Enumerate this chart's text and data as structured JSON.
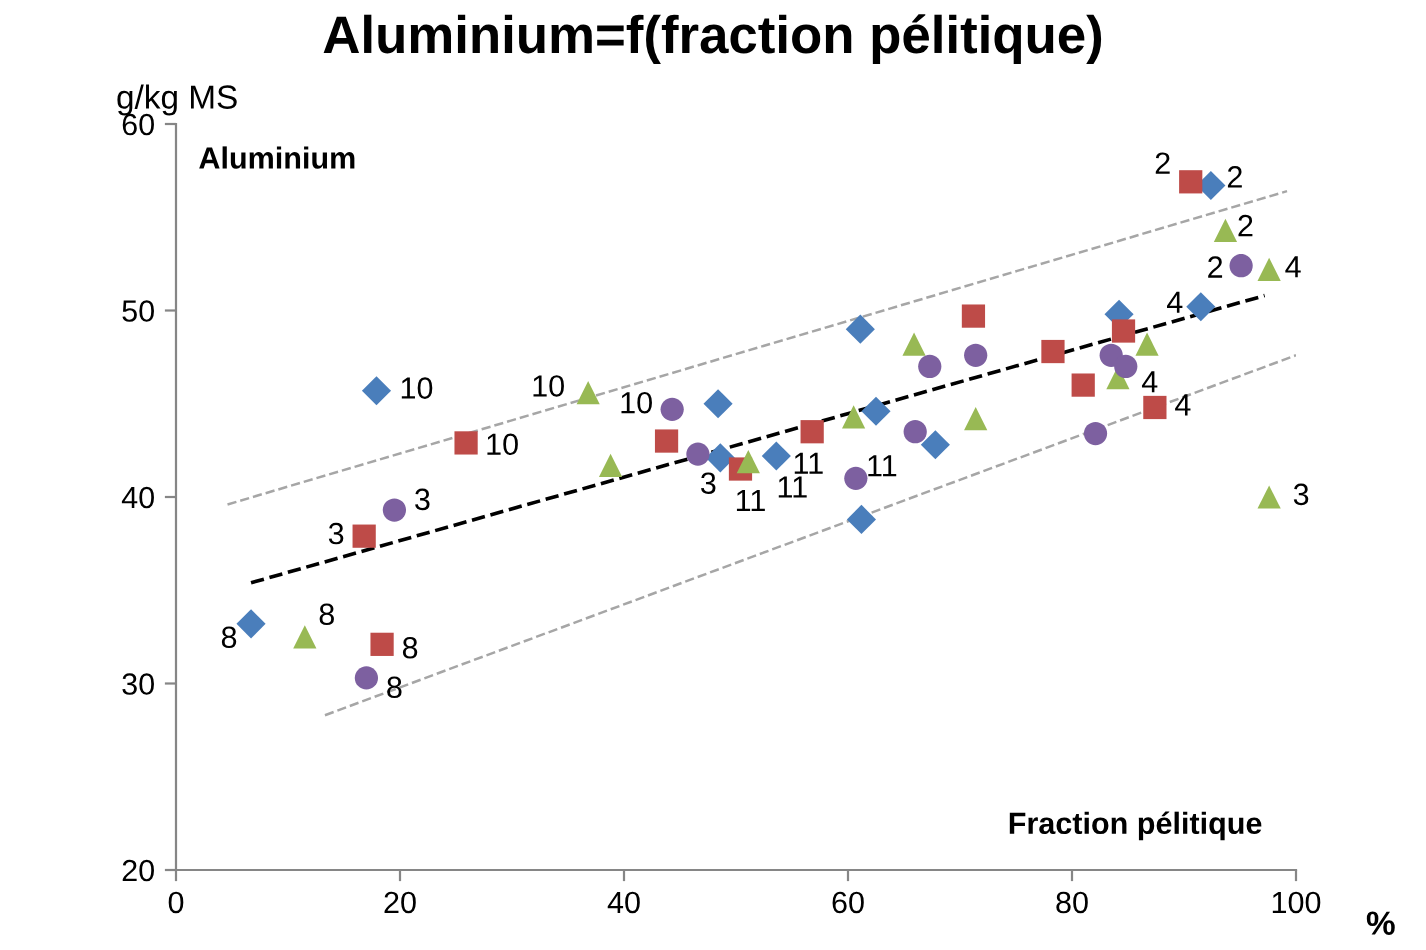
{
  "chart_data": {
    "type": "scatter",
    "title": "Aluminium=f(fraction pélitique)",
    "xlabel": "%",
    "ylabel": "g/kg MS",
    "xlim": [
      0,
      100
    ],
    "xticks": [
      0,
      20,
      40,
      60,
      80,
      100
    ],
    "ylim": [
      20,
      60
    ],
    "yticks": [
      20,
      30,
      40,
      50,
      60
    ],
    "grid": false,
    "legend": false,
    "series": [
      {
        "color": "#4a7ebb",
        "marker": "diamond",
        "x": [
          6.7,
          17.9,
          48.4,
          48.6,
          53.6,
          61.1,
          62.5,
          61.2,
          67.8,
          84.2,
          91.5,
          92.4
        ],
        "values": [
          33.2,
          45.7,
          45.0,
          42.1,
          42.2,
          49.0,
          44.6,
          38.8,
          42.8,
          49.8,
          50.2,
          56.7
        ]
      },
      {
        "color": "#be4b48",
        "marker": "square",
        "x": [
          16.8,
          18.4,
          25.9,
          43.8,
          50.4,
          56.8,
          71.2,
          78.3,
          81.0,
          84.6,
          87.4,
          90.6
        ],
        "values": [
          37.9,
          32.1,
          42.9,
          43.0,
          41.5,
          43.5,
          49.7,
          47.8,
          46.0,
          48.9,
          44.8,
          56.9
        ]
      },
      {
        "color": "#98b954",
        "marker": "triangle",
        "x": [
          11.5,
          36.8,
          38.8,
          51.1,
          60.5,
          65.9,
          71.4,
          84.1,
          86.7,
          93.7,
          97.6,
          97.6
        ],
        "values": [
          32.5,
          45.6,
          41.7,
          41.9,
          44.3,
          48.2,
          44.2,
          46.4,
          48.2,
          54.3,
          52.2,
          40.0
        ]
      },
      {
        "color": "#7d60a0",
        "marker": "circle",
        "x": [
          17.0,
          19.5,
          44.3,
          46.6,
          60.7,
          66.0,
          67.3,
          71.4,
          82.1,
          83.5,
          84.8,
          95.1
        ],
        "values": [
          30.3,
          39.3,
          44.7,
          42.3,
          41.0,
          43.5,
          47.0,
          47.6,
          43.4,
          47.6,
          47.0,
          52.4
        ]
      },
      {
        "type": "line",
        "color": "#000000",
        "line_style": "dashed",
        "x": [
          6.7,
          97.2
        ],
        "values": [
          35.4,
          50.8
        ]
      },
      {
        "type": "line",
        "color": "#a6a6a6",
        "line_style": "dashed",
        "x": [
          4.6,
          99.2
        ],
        "values": [
          39.6,
          56.4
        ]
      },
      {
        "type": "line",
        "color": "#a6a6a6",
        "line_style": "dashed",
        "x": [
          13.3,
          100
        ],
        "values": [
          28.3,
          47.6
        ]
      }
    ],
    "annotations": [
      "Aluminium",
      "Fraction pélitique",
      {
        "text": "8",
        "x": 6.7,
        "y": 33.2
      },
      {
        "text": "8",
        "x": 11.5,
        "y": 32.5
      },
      {
        "text": "8",
        "x": 18.4,
        "y": 32.1
      },
      {
        "text": "8",
        "x": 17.0,
        "y": 30.3
      },
      {
        "text": "10",
        "x": 17.9,
        "y": 45.7
      },
      {
        "text": "10",
        "x": 25.9,
        "y": 42.9
      },
      {
        "text": "10",
        "x": 36.8,
        "y": 45.6
      },
      {
        "text": "10",
        "x": 44.3,
        "y": 44.7
      },
      {
        "text": "3",
        "x": 16.8,
        "y": 37.9
      },
      {
        "text": "3",
        "x": 19.5,
        "y": 39.3
      },
      {
        "text": "3",
        "x": 48.6,
        "y": 42.1
      },
      {
        "text": "3",
        "x": 97.6,
        "y": 40.0
      },
      {
        "text": "11",
        "x": 50.4,
        "y": 41.5
      },
      {
        "text": "11",
        "x": 51.1,
        "y": 41.9
      },
      {
        "text": "11",
        "x": 53.6,
        "y": 42.2
      },
      {
        "text": "11",
        "x": 60.7,
        "y": 41.0
      },
      {
        "text": "2",
        "x": 90.6,
        "y": 56.9
      },
      {
        "text": "2",
        "x": 92.4,
        "y": 56.7
      },
      {
        "text": "2",
        "x": 93.7,
        "y": 54.3
      },
      {
        "text": "2",
        "x": 95.1,
        "y": 52.4
      },
      {
        "text": "4",
        "x": 91.5,
        "y": 50.2
      },
      {
        "text": "4",
        "x": 97.6,
        "y": 52.2
      },
      {
        "text": "4",
        "x": 84.8,
        "y": 47.0
      },
      {
        "text": "4",
        "x": 87.4,
        "y": 44.8
      }
    ]
  }
}
